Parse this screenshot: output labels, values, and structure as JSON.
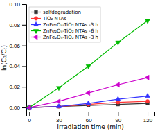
{
  "chart_data": {
    "type": "line",
    "x_label": "Irradiation time (min)",
    "y_label": "ln(C₀/Cₜ)",
    "x": [
      0,
      30,
      60,
      90,
      120
    ],
    "series": [
      {
        "name": "selfdegradation",
        "color": "#333333",
        "marker": "square",
        "values": [
          0,
          0.001,
          0.002,
          0.003,
          0.004
        ]
      },
      {
        "name": "TiO₂ NTAs",
        "color": "#ff3333",
        "marker": "circle",
        "values": [
          0,
          0.001,
          0.003,
          0.005,
          0.006
        ]
      },
      {
        "name": "ZnFe₂O₄-TiO₂ NTAs -3 h",
        "color": "#3333ff",
        "marker": "triangle-up",
        "values": [
          0,
          0.001,
          0.004,
          0.008,
          0.011
        ]
      },
      {
        "name": "ZnFe₂O₄-TiO₂ NTAs -6 h",
        "color": "#00bb00",
        "marker": "triangle-down",
        "values": [
          0,
          0.019,
          0.04,
          0.063,
          0.084
        ]
      },
      {
        "name": "ZnFe₂O₄-TiO₂ NTAs -3 h",
        "color": "#cc00cc",
        "marker": "triangle-left",
        "values": [
          0,
          0.006,
          0.014,
          0.022,
          0.029
        ]
      }
    ],
    "xlim": [
      -3,
      127
    ],
    "ylim": [
      -0.004,
      0.1
    ],
    "xticks": [
      0,
      30,
      60,
      90,
      120
    ],
    "yticks": [
      {
        "value": 0,
        "label": "0.00"
      },
      0.02,
      0.04,
      0.06,
      0.08,
      {
        "value": 0.1,
        "label": "0.10"
      }
    ],
    "legend": "upper left",
    "grid": false
  }
}
